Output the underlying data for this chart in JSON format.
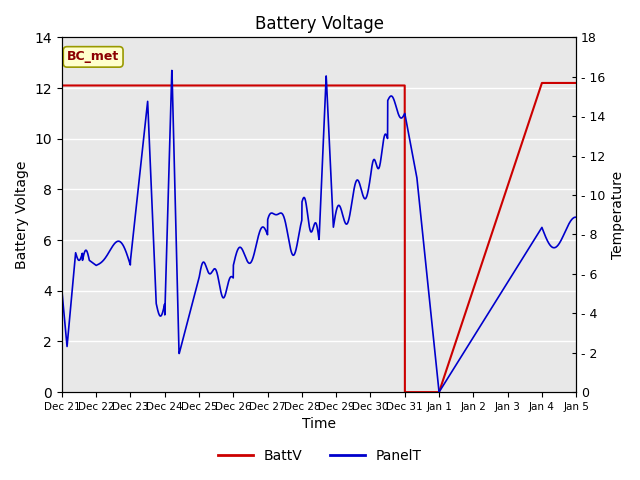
{
  "title": "Battery Voltage",
  "xlabel": "Time",
  "ylabel_left": "Battery Voltage",
  "ylabel_right": "Temperature",
  "ylim_left": [
    0,
    14
  ],
  "ylim_right": [
    0,
    18
  ],
  "yticks_left": [
    0,
    2,
    4,
    6,
    8,
    10,
    12,
    14
  ],
  "yticks_right_vals": [
    0,
    2,
    4,
    6,
    8,
    10,
    12,
    14,
    16,
    18
  ],
  "yticks_right_labels": [
    "0",
    "- 2",
    "- 4",
    "- 6",
    "- 8",
    "- 10",
    "- 12",
    "- 14",
    "- 16",
    "18"
  ],
  "bg_color": "#e8e8e8",
  "grid_color": "#ffffff",
  "annotation_text": "BC_met",
  "annotation_color": "#8b0000",
  "annotation_bg": "#ffffcc",
  "annotation_edge": "#999900",
  "batt_color": "#cc0000",
  "panel_color": "#0000cc",
  "legend_labels": [
    "BattV",
    "PanelT"
  ],
  "figsize": [
    6.4,
    4.8
  ],
  "dpi": 100,
  "tick_positions": [
    0,
    24,
    48,
    72,
    96,
    120,
    144,
    168,
    192,
    216,
    240,
    264,
    288,
    312,
    336,
    360
  ],
  "tick_labels": [
    "Dec 21",
    "Dec 22",
    "Dec 23",
    "Dec 24",
    "Dec 25",
    "Dec 26",
    "Dec 27",
    "Dec 28",
    "Dec 29",
    "Dec 30",
    "Dec 31",
    "Jan 1",
    "Jan 2",
    "Jan 3",
    "Jan 4",
    "Jan 5"
  ]
}
